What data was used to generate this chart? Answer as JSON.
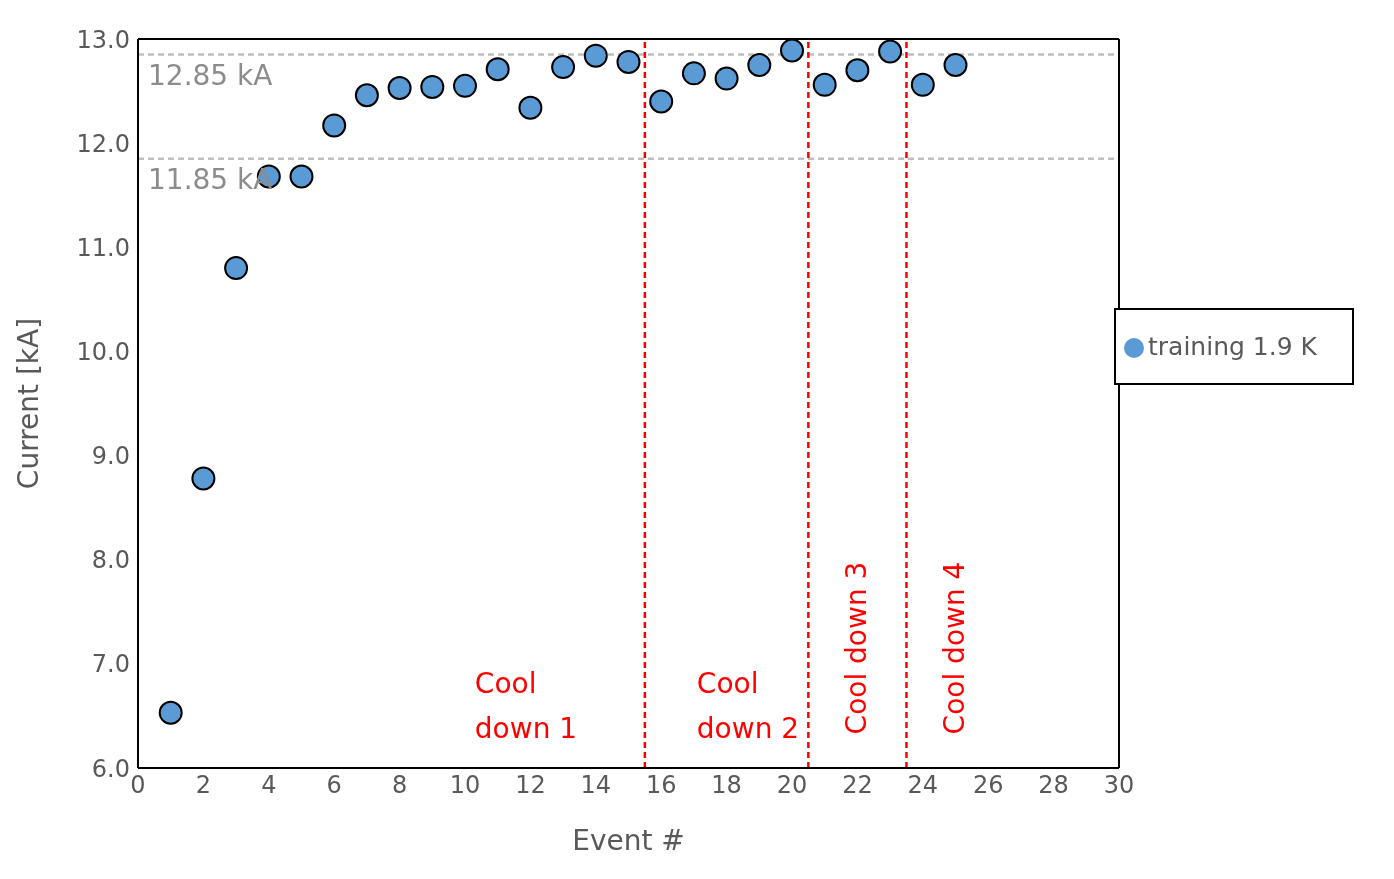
{
  "chart_data": {
    "type": "scatter",
    "xlabel": "Event #",
    "ylabel": "Current [kA]",
    "x": [
      1,
      2,
      3,
      4,
      5,
      6,
      7,
      8,
      9,
      10,
      11,
      12,
      13,
      14,
      15,
      16,
      17,
      18,
      19,
      20,
      21,
      22,
      23,
      24,
      25
    ],
    "series": [
      {
        "name": "training 1.9 K",
        "color": "#5b9bd5",
        "values": [
          6.53,
          8.78,
          10.8,
          11.68,
          11.68,
          12.17,
          12.46,
          12.53,
          12.54,
          12.55,
          12.71,
          12.34,
          12.73,
          12.84,
          12.78,
          12.4,
          12.67,
          12.62,
          12.75,
          12.89,
          12.56,
          12.7,
          12.88,
          12.56,
          12.75
        ]
      }
    ],
    "xlim": [
      0,
      30
    ],
    "xticks": [
      0,
      2,
      4,
      6,
      8,
      10,
      12,
      14,
      16,
      18,
      20,
      22,
      24,
      26,
      28,
      30
    ],
    "ylim": [
      6,
      13
    ],
    "yticks": [
      {
        "value": 6,
        "label": "6.0"
      },
      {
        "value": 7,
        "label": "7.0"
      },
      {
        "value": 8,
        "label": "8.0"
      },
      {
        "value": 9,
        "label": "9.0"
      },
      {
        "value": 10,
        "label": "10.0"
      },
      {
        "value": 11,
        "label": "11.0"
      },
      {
        "value": 12,
        "label": "12.0"
      },
      {
        "value": 13,
        "label": "13.0"
      }
    ],
    "ref_lines": [
      {
        "axis": "y",
        "value": 12.85,
        "label": "12.85 kA",
        "color": "#bfbfbf",
        "line_style": "dashed"
      },
      {
        "axis": "y",
        "value": 11.85,
        "label": "11.85 kA",
        "color": "#bfbfbf",
        "line_style": "dashed"
      },
      {
        "axis": "x",
        "value": 15.5,
        "color": "#ff0000",
        "line_style": "dashed"
      },
      {
        "axis": "x",
        "value": 20.5,
        "color": "#ff0000",
        "line_style": "dashed"
      },
      {
        "axis": "x",
        "value": 23.5,
        "color": "#ff0000",
        "line_style": "dashed"
      }
    ],
    "annotations": [
      "Cool down 1",
      "Cool down 2",
      "Cool down 3",
      "Cool down 4"
    ],
    "marker": "circle",
    "grid": false,
    "legend": "right"
  }
}
